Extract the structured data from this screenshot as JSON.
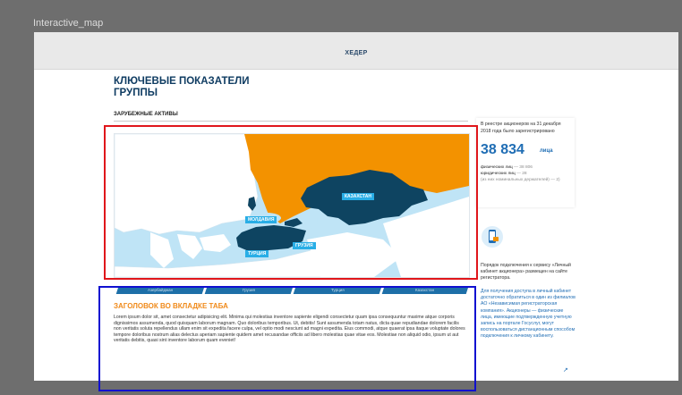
{
  "frame": {
    "label": "Interactive_map"
  },
  "header": {
    "title": "ХЕДЕР"
  },
  "page": {
    "title": "КЛЮЧЕВЫЕ ПОКАЗАТЕЛИ ГРУППЫ",
    "section_label": "ЗАРУБЕЖНЫЕ АКТИВЫ"
  },
  "map": {
    "labels": {
      "kazakhstan": "КАЗАХСТАН",
      "moldova": "МОЛДАВИЯ",
      "georgia": "ГРУЗИЯ",
      "turkey": "ТУРЦИЯ"
    },
    "colors": {
      "sea": "#bfe4f6",
      "land": "#ffffff",
      "russia": "#f39200",
      "asset": "#0e4461",
      "label": "#29aee6"
    }
  },
  "tabs": {
    "items": [
      "Азербайджан",
      "Грузия",
      "Турция",
      "Казахстан"
    ]
  },
  "tab_content": {
    "heading": "ЗАГОЛОВОК ВО ВКЛАДКЕ ТАБА",
    "body": "Lorem ipsum dolor sit, amet consectetur adipisicing elit. Minima qui molestias inventore sapiente eligendi consectetur quam ipsa consequuntur maxime atque corporis dignissimos assumenda, quod quisquam laborum magnam. Quo doloribus temporibus. Ut, debitis! Sunt assumenda totam natus, dicta quae repudiandae dolorem facilis non veritatis soluta repellendus ullam enim sit expedita facere culpa, vel optio modi nesciunt ad magni expedita. Eius commodi, atque quaerat ipsa itaque voluptate dolores tempore doloribus nostrum alias delectus aperiam sapiente quidem amet recusandae officiis ad libero molestias quae vitae eos. Molestiae non aliquid odio, ipsum ut aut veritatis debitis, quasi sint inventore laborum quam eveniet!"
  },
  "sidebar": {
    "registry_text": "В реестре акционеров на 31 декабря 2018 года было зарегистрировано",
    "shareholders_number": "38 834",
    "shareholders_unit": "лица",
    "individuals": "физических лиц",
    "individuals_value": "— 38 806",
    "legal": "юридических лиц",
    "legal_value": "— 28",
    "nominee_note": "(из них номинальных держателей) — 2)",
    "order_text": "Порядок подключения к сервису «Личный кабинет акционера» размещен на сайте регистратора.",
    "access_text": "Для получения доступа в личный кабинет достаточно обратиться в один из филиалов АО «Независимая регистраторская компания». Акционеры — физические лица, имеющие подтвержденную учетную запись на портале Госуслуг, могут воспользоваться дистанционным способом подключения к личному кабинету."
  }
}
